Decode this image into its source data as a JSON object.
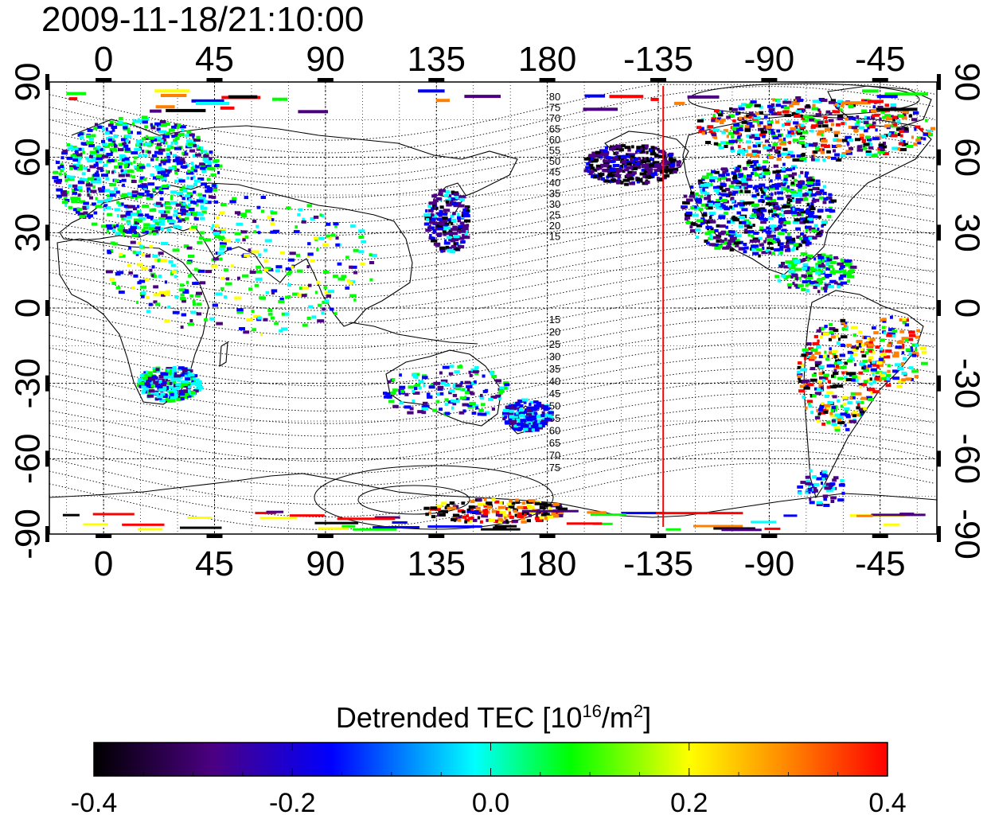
{
  "timestamp": "2009-11-18/21:10:00",
  "map": {
    "lon_ticks": [
      "0",
      "45",
      "90",
      "135",
      "180",
      "-135",
      "-90",
      "-45"
    ],
    "lat_ticks": [
      "90",
      "60",
      "30",
      "0",
      "-30",
      "-60",
      "-90"
    ],
    "contour_labels_north": [
      "80",
      "75",
      "70",
      "65",
      "60",
      "55",
      "50",
      "45",
      "40",
      "35",
      "30",
      "25",
      "20",
      "15"
    ],
    "contour_labels_south": [
      "15",
      "20",
      "25",
      "30",
      "35",
      "40",
      "45",
      "50",
      "55",
      "60",
      "65",
      "70",
      "75"
    ],
    "terminator_longitude": -133,
    "terminator_color": "#ff0000"
  },
  "colorbar": {
    "title_main": "Detrended TEC  [10",
    "title_exp": "16",
    "title_unit": "/m",
    "title_exp2": "2",
    "title_end": "]",
    "min": -0.4,
    "max": 0.4,
    "tick_labels": [
      "-0.4",
      "-0.2",
      "0.0",
      "0.2",
      "0.4"
    ],
    "colors": [
      "#000000",
      "#4b0082",
      "#0000ff",
      "#00ffff",
      "#00ff00",
      "#ffff00",
      "#ff8000",
      "#ff0000"
    ]
  }
}
